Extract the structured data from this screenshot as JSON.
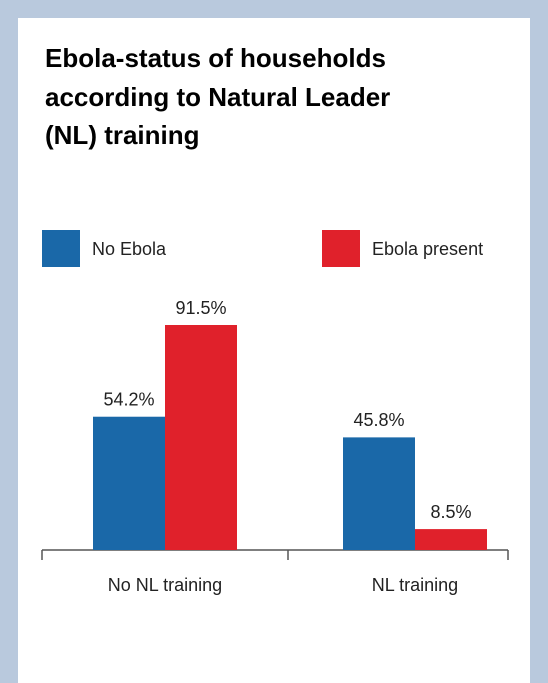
{
  "chart_data": {
    "type": "bar",
    "title": [
      "Ebola-status of households",
      "according to Natural Leader",
      "(NL) training"
    ],
    "categories": [
      "No NL training",
      "NL training"
    ],
    "series": [
      {
        "name": "No Ebola",
        "color": "#1a68a8",
        "values": [
          54.2,
          45.8
        ],
        "value_labels": [
          "54.2%",
          "45.8%"
        ]
      },
      {
        "name": "Ebola present",
        "color": "#e0212b",
        "values": [
          91.5,
          8.5
        ],
        "value_labels": [
          "91.5%",
          "8.5%"
        ]
      }
    ]
  }
}
